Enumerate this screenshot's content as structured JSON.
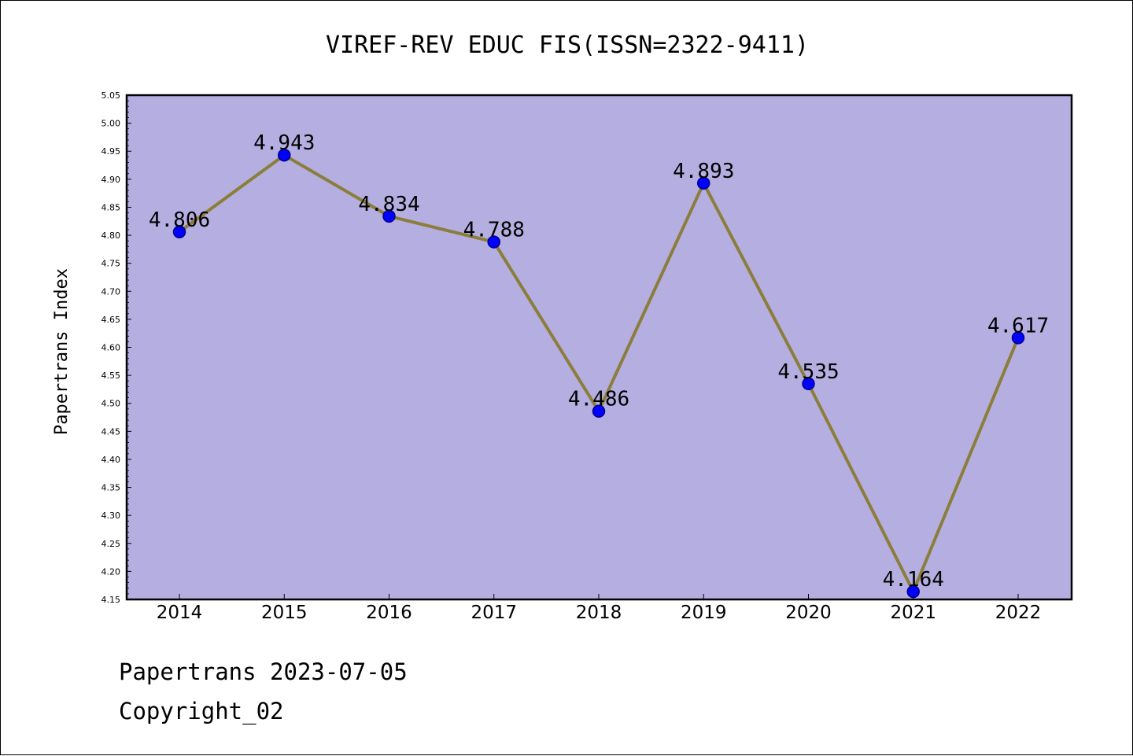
{
  "chart_data": {
    "type": "line",
    "title": "VIREF-REV EDUC FIS(ISSN=2322-9411)",
    "xlabel": "",
    "ylabel": "Papertrans Index",
    "categories": [
      "2014",
      "2015",
      "2016",
      "2017",
      "2018",
      "2019",
      "2020",
      "2021",
      "2022"
    ],
    "values": [
      4.806,
      4.943,
      4.834,
      4.788,
      4.486,
      4.893,
      4.535,
      4.164,
      4.617
    ],
    "data_labels": [
      "4.806",
      "4.943",
      "4.834",
      "4.788",
      "4.486",
      "4.893",
      "4.535",
      "4.164",
      "4.617"
    ],
    "ylim": [
      4.15,
      5.05
    ],
    "yticks": [
      "4.15",
      "4.20",
      "4.25",
      "4.30",
      "4.35",
      "4.40",
      "4.45",
      "4.50",
      "4.55",
      "4.60",
      "4.65",
      "4.70",
      "4.75",
      "4.80",
      "4.85",
      "4.90",
      "4.95",
      "5.00",
      "5.05"
    ],
    "grid": false,
    "legend": "none",
    "colors": {
      "plot_background": "#b5aee1",
      "line": "#8b7d3a",
      "marker": "#0000ff",
      "marker_edge": "#00008b"
    }
  },
  "footer": {
    "date_line": "Papertrans 2023-07-05",
    "copyright_line": "Copyright_02"
  }
}
